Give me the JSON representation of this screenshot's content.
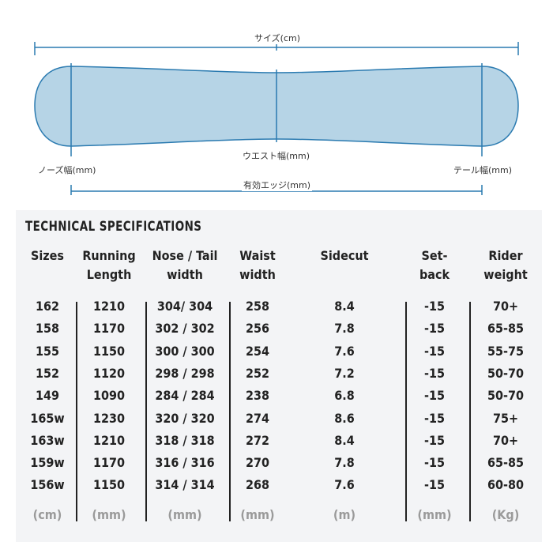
{
  "diagram": {
    "size_label": "サイズ(cm)",
    "waist_label": "ウエスト幅(mm)",
    "nose_label": "ノーズ幅(mm)",
    "tail_label": "テール幅(mm)",
    "edge_label": "有効エッジ(mm)",
    "board_fill": "#b6d4e6",
    "board_stroke": "#2a7ab0"
  },
  "specs": {
    "title": "TECHNICAL SPECIFICATIONS",
    "headers": [
      [
        "Sizes"
      ],
      [
        "Running",
        "Length"
      ],
      [
        "Nose / Tail",
        "width"
      ],
      [
        "Waist",
        "width"
      ],
      [
        "Sidecut"
      ],
      [
        "Set-",
        "back"
      ],
      [
        "Rider",
        "weight"
      ]
    ],
    "rows": [
      [
        "162",
        "1210",
        "304/  304",
        "258",
        "8.4",
        "-15",
        "70+"
      ],
      [
        "158",
        "1170",
        "302 / 302",
        "256",
        "7.8",
        "-15",
        "65-85"
      ],
      [
        "155",
        "1150",
        "300 / 300",
        "254",
        "7.6",
        "-15",
        "55-75"
      ],
      [
        "152",
        "1120",
        "298 / 298",
        "252",
        "7.2",
        "-15",
        "50-70"
      ],
      [
        "149",
        "1090",
        "284 / 284",
        "238",
        "6.8",
        "-15",
        "50-70"
      ],
      [
        "165w",
        "1230",
        "320 / 320",
        "274",
        "8.6",
        "-15",
        "75+"
      ],
      [
        "163w",
        "1210",
        "318 / 318",
        "272",
        "8.4",
        "-15",
        "70+"
      ],
      [
        "159w",
        "1170",
        "316 / 316",
        "270",
        "7.8",
        "-15",
        "65-85"
      ],
      [
        "156w",
        "1150",
        "314 / 314",
        "268",
        "7.6",
        "-15",
        "60-80"
      ]
    ],
    "units": [
      "(cm)",
      "(mm)",
      "(mm)",
      "(mm)",
      "(m)",
      "(mm)",
      "(Kg)"
    ]
  }
}
